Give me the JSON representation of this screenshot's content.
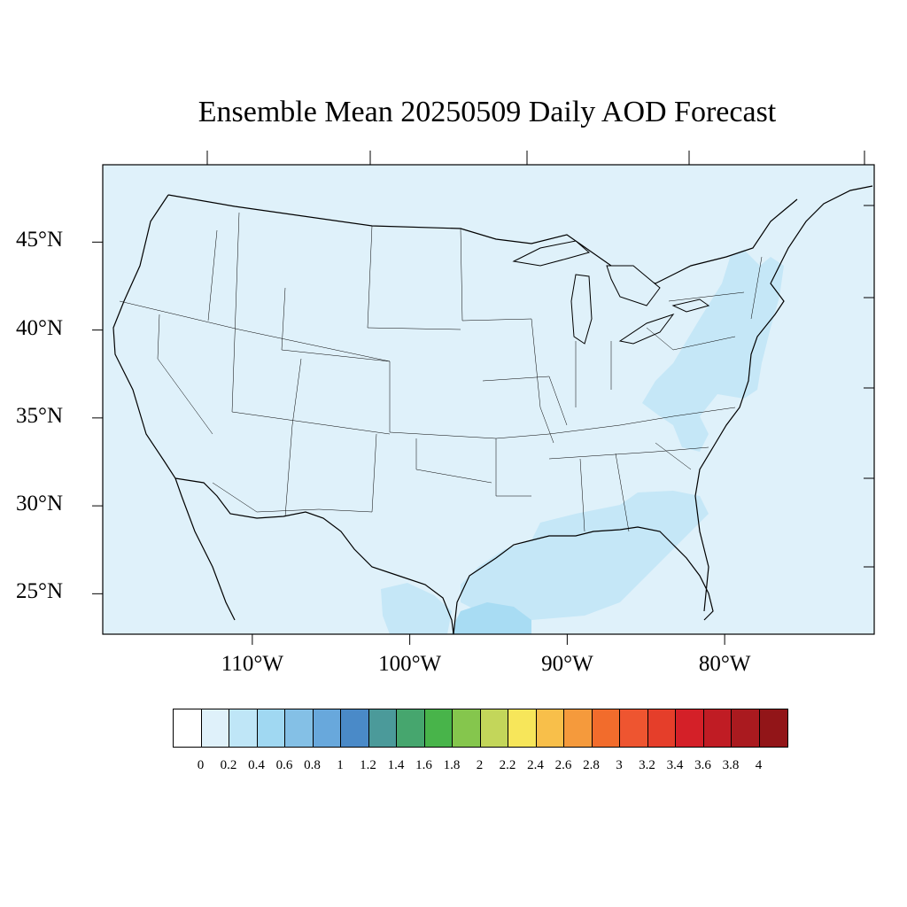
{
  "title": "Ensemble Mean 20250509 Daily AOD Forecast",
  "map": {
    "projection": "lat-lon",
    "lon_range_deg": [
      -119.5,
      -70.5
    ],
    "lat_range_deg": [
      22.7,
      49.4
    ],
    "background_color": "#dff1fa",
    "lat_ticks": [
      {
        "value": 45,
        "label": "45°N"
      },
      {
        "value": 40,
        "label": "40°N"
      },
      {
        "value": 35,
        "label": "35°N"
      },
      {
        "value": 30,
        "label": "30°N"
      },
      {
        "value": 25,
        "label": "25°N"
      }
    ],
    "lon_ticks": [
      {
        "value": -110,
        "label": "110°W"
      },
      {
        "value": -100,
        "label": "100°W"
      },
      {
        "value": -90,
        "label": "90°W"
      },
      {
        "value": -80,
        "label": "80°W"
      }
    ]
  },
  "colorbar": {
    "colors": [
      "#ffffff",
      "#dff1fa",
      "#bfe6f7",
      "#a0d8f2",
      "#84c0e6",
      "#68a8dc",
      "#4a8ac8",
      "#4b9a9a",
      "#46a66e",
      "#48b44a",
      "#85c64d",
      "#c3d65a",
      "#f7e65a",
      "#f8bf4a",
      "#f59a3c",
      "#f26c2c",
      "#ee5530",
      "#e53e2a",
      "#d42028",
      "#c01c24",
      "#aa1a1f",
      "#921518"
    ],
    "labels": [
      "0",
      "0.2",
      "0.4",
      "0.6",
      "0.8",
      "1",
      "1.2",
      "1.4",
      "1.6",
      "1.8",
      "2",
      "2.2",
      "2.4",
      "2.6",
      "2.8",
      "3",
      "3.2",
      "3.4",
      "3.6",
      "3.8",
      "4"
    ]
  }
}
